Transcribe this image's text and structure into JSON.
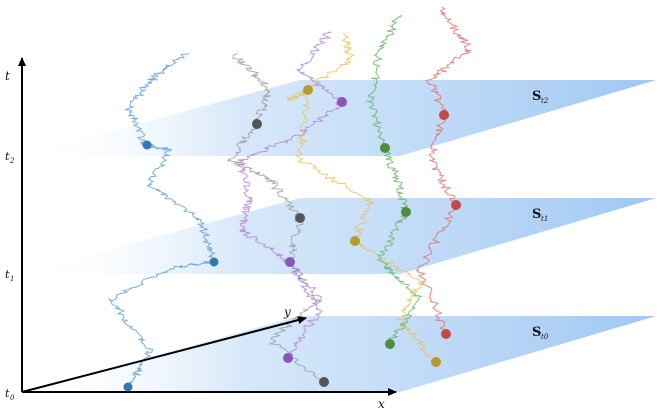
{
  "axes": {
    "t_label": "t",
    "x_label": "x",
    "y_label": "y",
    "t_ticks": [
      "t",
      "t",
      "t"
    ],
    "t_tick_subs": [
      "0",
      "1",
      "2"
    ]
  },
  "slices": [
    {
      "label": "S",
      "sub": "t0"
    },
    {
      "label": "S",
      "sub": "t1"
    },
    {
      "label": "S",
      "sub": "t2"
    }
  ],
  "colors": {
    "plane": "#8ec0f2",
    "paths": [
      "#5b9bd5",
      "#9a9a9a",
      "#b07fd3",
      "#e8c159",
      "#5fb35f",
      "#e26b6b"
    ],
    "dots": [
      "#2e7ab4",
      "#555555",
      "#8a55b8",
      "#b89a2c",
      "#4f8d3f",
      "#c44848"
    ]
  }
}
